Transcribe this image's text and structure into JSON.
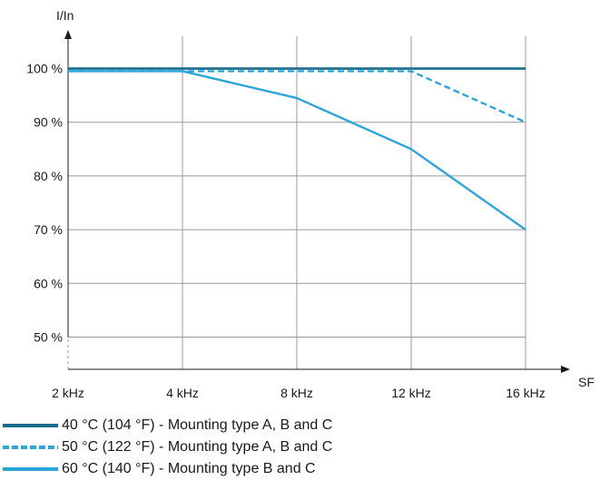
{
  "chart_data": {
    "type": "line",
    "categories": [
      "2 kHz",
      "4 kHz",
      "8 kHz",
      "12 kHz",
      "16 kHz"
    ],
    "ylabel": "I/In",
    "xlabel": "SF",
    "yticks": [
      50,
      60,
      70,
      80,
      90,
      100
    ],
    "ytick_labels": [
      "50 %",
      "60 %",
      "70 %",
      "80 %",
      "90 %",
      "100 %"
    ],
    "ylim": [
      44,
      106
    ],
    "grid": true,
    "series": [
      {
        "name": "40 °C (104 °F) - Mounting type A, B and C",
        "values": [
          100,
          100,
          100,
          100,
          100
        ],
        "color": "#1a6a8e",
        "style": "solid"
      },
      {
        "name": "50 °C (122 °F) - Mounting type A, B and C",
        "values": [
          99.5,
          99.5,
          99.5,
          99.5,
          90
        ],
        "color": "#2aa6d8",
        "style": "dashed"
      },
      {
        "name": "60 °C (140 °F) - Mounting type B and C",
        "values": [
          99.5,
          99.5,
          94.5,
          85,
          70
        ],
        "color": "#2aa6d8",
        "style": "solid"
      }
    ]
  }
}
